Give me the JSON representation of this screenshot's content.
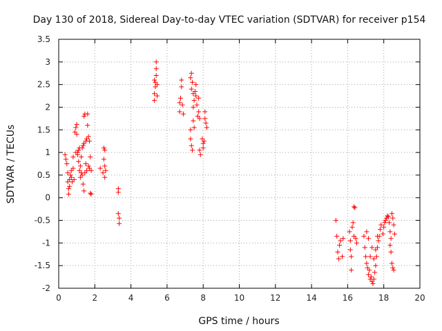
{
  "chart_data": {
    "type": "scatter",
    "title": "Day 130 of 2018, Sidereal Day-to-day VTEC variation (SDTVAR) for receiver p154",
    "xlabel": "GPS time / hours",
    "ylabel": "SDTVAR / TECUs",
    "xlim": [
      0,
      20
    ],
    "ylim": [
      -2,
      3.5
    ],
    "xticks": [
      "0",
      "2",
      "4",
      "6",
      "8",
      "10",
      "12",
      "14",
      "16",
      "18",
      "20"
    ],
    "yticks": [
      "-2",
      "-1.5",
      "-1",
      "-0.5",
      "0",
      "0.5",
      "1",
      "1.5",
      "2",
      "2.5",
      "3",
      "3.5"
    ],
    "grid": true,
    "marker": "+",
    "color": "#ff0000",
    "series": [
      {
        "name": "SDTVAR",
        "points": [
          [
            0.35,
            0.95
          ],
          [
            0.4,
            0.85
          ],
          [
            0.45,
            0.75
          ],
          [
            0.5,
            0.55
          ],
          [
            0.5,
            0.35
          ],
          [
            0.55,
            0.2
          ],
          [
            0.55,
            0.08
          ],
          [
            0.6,
            0.4
          ],
          [
            0.6,
            0.25
          ],
          [
            0.65,
            0.5
          ],
          [
            0.7,
            0.6
          ],
          [
            0.7,
            0.45
          ],
          [
            0.75,
            0.35
          ],
          [
            0.8,
            0.65
          ],
          [
            0.8,
            0.9
          ],
          [
            0.85,
            0.4
          ],
          [
            0.9,
            1.45
          ],
          [
            0.95,
            1.55
          ],
          [
            1.0,
            1.62
          ],
          [
            1.0,
            1.4
          ],
          [
            0.95,
            1.0
          ],
          [
            1.05,
            0.95
          ],
          [
            1.1,
            1.05
          ],
          [
            1.1,
            0.8
          ],
          [
            1.15,
            0.6
          ],
          [
            1.2,
            0.45
          ],
          [
            1.2,
            0.7
          ],
          [
            1.25,
            0.9
          ],
          [
            1.3,
            1.1
          ],
          [
            1.35,
            1.15
          ],
          [
            1.4,
            1.2
          ],
          [
            1.4,
            1.8
          ],
          [
            1.45,
            1.85
          ],
          [
            1.3,
            0.5
          ],
          [
            1.35,
            0.3
          ],
          [
            1.4,
            0.15
          ],
          [
            1.45,
            0.55
          ],
          [
            1.5,
            0.75
          ],
          [
            1.5,
            1.25
          ],
          [
            1.55,
            1.3
          ],
          [
            1.6,
            1.6
          ],
          [
            1.6,
            1.85
          ],
          [
            1.65,
            1.35
          ],
          [
            1.7,
            1.25
          ],
          [
            1.7,
            0.65
          ],
          [
            1.75,
            0.9
          ],
          [
            1.75,
            0.1
          ],
          [
            1.8,
            0.08
          ],
          [
            1.8,
            0.6
          ],
          [
            1.05,
            1.0
          ],
          [
            1.15,
            1.1
          ],
          [
            1.25,
            0.55
          ],
          [
            1.55,
            0.6
          ],
          [
            1.65,
            0.7
          ],
          [
            2.3,
            0.65
          ],
          [
            2.45,
            0.55
          ],
          [
            2.5,
            0.85
          ],
          [
            2.5,
            1.1
          ],
          [
            2.55,
            1.05
          ],
          [
            2.55,
            0.7
          ],
          [
            2.6,
            0.6
          ],
          [
            2.55,
            0.45
          ],
          [
            3.3,
            0.2
          ],
          [
            3.3,
            0.12
          ],
          [
            3.3,
            -0.35
          ],
          [
            3.35,
            -0.45
          ],
          [
            3.35,
            -0.57
          ],
          [
            5.3,
            2.15
          ],
          [
            5.3,
            2.3
          ],
          [
            5.35,
            2.45
          ],
          [
            5.35,
            2.55
          ],
          [
            5.4,
            2.7
          ],
          [
            5.4,
            2.85
          ],
          [
            5.4,
            3.0
          ],
          [
            5.45,
            2.5
          ],
          [
            5.45,
            2.25
          ],
          [
            5.3,
            2.6
          ],
          [
            6.7,
            2.1
          ],
          [
            6.7,
            1.9
          ],
          [
            6.75,
            2.2
          ],
          [
            6.8,
            2.45
          ],
          [
            6.8,
            2.6
          ],
          [
            6.85,
            2.05
          ],
          [
            6.9,
            1.85
          ],
          [
            7.3,
            2.65
          ],
          [
            7.35,
            2.75
          ],
          [
            7.4,
            2.55
          ],
          [
            7.35,
            2.4
          ],
          [
            7.45,
            2.3
          ],
          [
            7.45,
            2.0
          ],
          [
            7.5,
            2.15
          ],
          [
            7.55,
            2.35
          ],
          [
            7.6,
            2.5
          ],
          [
            7.6,
            2.25
          ],
          [
            7.65,
            2.05
          ],
          [
            7.7,
            1.8
          ],
          [
            7.75,
            2.2
          ],
          [
            7.75,
            1.9
          ],
          [
            7.8,
            1.75
          ],
          [
            7.8,
            1.05
          ],
          [
            7.85,
            0.95
          ],
          [
            7.3,
            1.5
          ],
          [
            7.3,
            1.3
          ],
          [
            7.35,
            1.15
          ],
          [
            7.4,
            1.05
          ],
          [
            7.45,
            1.7
          ],
          [
            7.5,
            1.55
          ],
          [
            7.95,
            1.3
          ],
          [
            8.0,
            1.2
          ],
          [
            8.0,
            1.1
          ],
          [
            8.05,
            1.25
          ],
          [
            8.1,
            1.9
          ],
          [
            8.1,
            1.75
          ],
          [
            8.15,
            1.65
          ],
          [
            8.2,
            1.55
          ],
          [
            15.35,
            -0.5
          ],
          [
            15.4,
            -0.85
          ],
          [
            15.45,
            -1.2
          ],
          [
            15.5,
            -1.35
          ],
          [
            15.55,
            -1.05
          ],
          [
            15.6,
            -0.95
          ],
          [
            15.7,
            -1.3
          ],
          [
            15.75,
            -0.9
          ],
          [
            16.1,
            -0.75
          ],
          [
            16.15,
            -0.95
          ],
          [
            16.15,
            -1.15
          ],
          [
            16.2,
            -1.3
          ],
          [
            16.2,
            -1.6
          ],
          [
            16.25,
            -0.65
          ],
          [
            16.3,
            -0.55
          ],
          [
            16.35,
            -0.85
          ],
          [
            16.35,
            -0.2
          ],
          [
            16.4,
            -0.22
          ],
          [
            16.45,
            -0.9
          ],
          [
            16.5,
            -1.0
          ],
          [
            16.9,
            -0.85
          ],
          [
            16.95,
            -1.1
          ],
          [
            17.0,
            -1.3
          ],
          [
            17.05,
            -1.45
          ],
          [
            17.1,
            -1.55
          ],
          [
            17.15,
            -1.7
          ],
          [
            17.2,
            -1.6
          ],
          [
            17.25,
            -1.8
          ],
          [
            17.3,
            -1.75
          ],
          [
            17.35,
            -1.85
          ],
          [
            17.4,
            -1.9
          ],
          [
            17.45,
            -1.8
          ],
          [
            17.5,
            -1.65
          ],
          [
            17.55,
            -1.5
          ],
          [
            17.6,
            -1.3
          ],
          [
            17.65,
            -1.1
          ],
          [
            17.7,
            -0.95
          ],
          [
            17.75,
            -0.85
          ],
          [
            17.8,
            -0.7
          ],
          [
            17.85,
            -0.6
          ],
          [
            17.05,
            -0.75
          ],
          [
            17.15,
            -0.9
          ],
          [
            17.25,
            -1.3
          ],
          [
            17.35,
            -1.1
          ],
          [
            17.45,
            -1.35
          ],
          [
            17.55,
            -1.15
          ],
          [
            17.65,
            -0.85
          ],
          [
            17.95,
            -0.8
          ],
          [
            18.0,
            -0.65
          ],
          [
            18.05,
            -0.55
          ],
          [
            18.1,
            -0.5
          ],
          [
            18.15,
            -0.45
          ],
          [
            18.2,
            -0.4
          ],
          [
            18.25,
            -0.42
          ],
          [
            18.3,
            -0.55
          ],
          [
            18.35,
            -0.75
          ],
          [
            18.35,
            -1.05
          ],
          [
            18.4,
            -1.2
          ],
          [
            18.45,
            -1.45
          ],
          [
            18.5,
            -1.55
          ],
          [
            18.55,
            -1.6
          ],
          [
            18.45,
            -0.35
          ],
          [
            18.5,
            -0.45
          ],
          [
            18.55,
            -0.6
          ],
          [
            18.6,
            -0.8
          ],
          [
            18.4,
            -0.9
          ]
        ]
      }
    ]
  }
}
